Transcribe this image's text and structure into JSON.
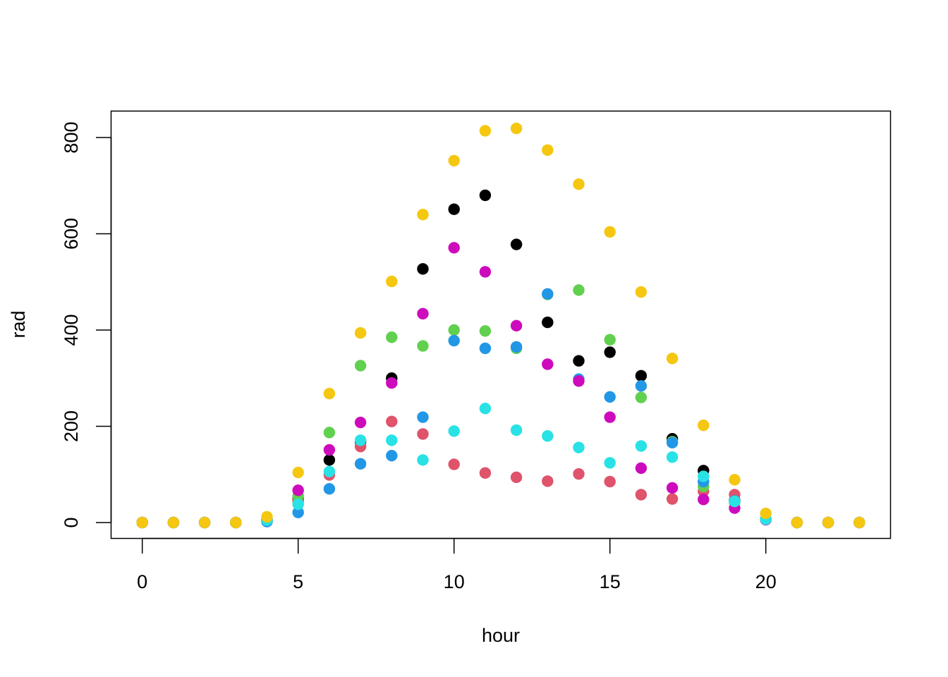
{
  "chart_data": {
    "type": "scatter",
    "title": "",
    "xlabel": "hour",
    "ylabel": "rad",
    "xlim": [
      -1,
      24
    ],
    "ylim": [
      -33,
      855
    ],
    "xticks": [
      0,
      5,
      10,
      15,
      20
    ],
    "yticks": [
      0,
      200,
      400,
      600,
      800
    ],
    "grid": false,
    "legend": "none",
    "point_style": "filled-circle",
    "series": [
      {
        "color": "#000000",
        "x": [
          0,
          1,
          2,
          3,
          4,
          5,
          6,
          7,
          8,
          9,
          10,
          11,
          12,
          13,
          14,
          15,
          16,
          17,
          18,
          19,
          20,
          21,
          22,
          23
        ],
        "y": [
          0,
          0,
          0,
          0,
          5,
          50,
          130,
          168,
          300,
          527,
          651,
          680,
          578,
          416,
          336,
          354,
          305,
          174,
          108,
          46,
          7,
          0,
          0,
          0
        ]
      },
      {
        "color": "#DF536B",
        "x": [
          0,
          1,
          2,
          3,
          4,
          5,
          6,
          7,
          8,
          9,
          10,
          11,
          12,
          13,
          14,
          15,
          16,
          17,
          18,
          19,
          20,
          21,
          22,
          23
        ],
        "y": [
          0,
          0,
          0,
          0,
          6,
          45,
          99,
          158,
          210,
          184,
          121,
          103,
          94,
          86,
          101,
          85,
          58,
          49,
          65,
          58,
          7,
          0,
          0,
          0
        ]
      },
      {
        "color": "#61D04F",
        "x": [
          0,
          1,
          2,
          3,
          4,
          5,
          6,
          7,
          8,
          9,
          10,
          11,
          12,
          13,
          14,
          15,
          16,
          17,
          18,
          19,
          20,
          21,
          22,
          23
        ],
        "y": [
          0,
          0,
          0,
          0,
          5,
          55,
          187,
          326,
          385,
          367,
          400,
          398,
          362,
          474,
          483,
          380,
          260,
          168,
          75,
          42,
          6,
          0,
          0,
          0
        ]
      },
      {
        "color": "#2297E6",
        "x": [
          0,
          1,
          2,
          3,
          4,
          5,
          6,
          7,
          8,
          9,
          10,
          11,
          12,
          13,
          14,
          15,
          16,
          17,
          18,
          19,
          20,
          21,
          22,
          23
        ],
        "y": [
          0,
          0,
          0,
          0,
          2,
          21,
          70,
          122,
          139,
          219,
          378,
          362,
          365,
          475,
          298,
          261,
          284,
          166,
          85,
          45,
          6,
          0,
          0,
          0
        ]
      },
      {
        "color": "#CD0BBC",
        "x": [
          0,
          1,
          2,
          3,
          4,
          5,
          6,
          7,
          8,
          9,
          10,
          11,
          12,
          13,
          14,
          15,
          16,
          17,
          18,
          19,
          20,
          21,
          22,
          23
        ],
        "y": [
          0,
          0,
          0,
          0,
          5,
          67,
          151,
          208,
          290,
          434,
          571,
          521,
          409,
          329,
          294,
          219,
          113,
          72,
          48,
          30,
          6,
          0,
          0,
          0
        ]
      },
      {
        "color": "#28E2E5",
        "x": [
          0,
          1,
          2,
          3,
          4,
          5,
          6,
          7,
          8,
          9,
          10,
          11,
          12,
          13,
          14,
          15,
          16,
          17,
          18,
          19,
          20,
          21,
          22,
          23
        ],
        "y": [
          0,
          0,
          0,
          0,
          5,
          38,
          106,
          171,
          171,
          130,
          190,
          237,
          192,
          180,
          156,
          124,
          159,
          136,
          96,
          44,
          7,
          0,
          0,
          0
        ]
      },
      {
        "color": "#F5C710",
        "x": [
          0,
          1,
          2,
          3,
          4,
          5,
          6,
          7,
          8,
          9,
          10,
          11,
          12,
          13,
          14,
          15,
          16,
          17,
          18,
          19,
          20,
          21,
          22,
          23
        ],
        "y": [
          0,
          0,
          0,
          0,
          12,
          104,
          268,
          394,
          501,
          640,
          752,
          814,
          819,
          774,
          703,
          604,
          479,
          341,
          202,
          89,
          19,
          0,
          0,
          0
        ]
      }
    ]
  }
}
